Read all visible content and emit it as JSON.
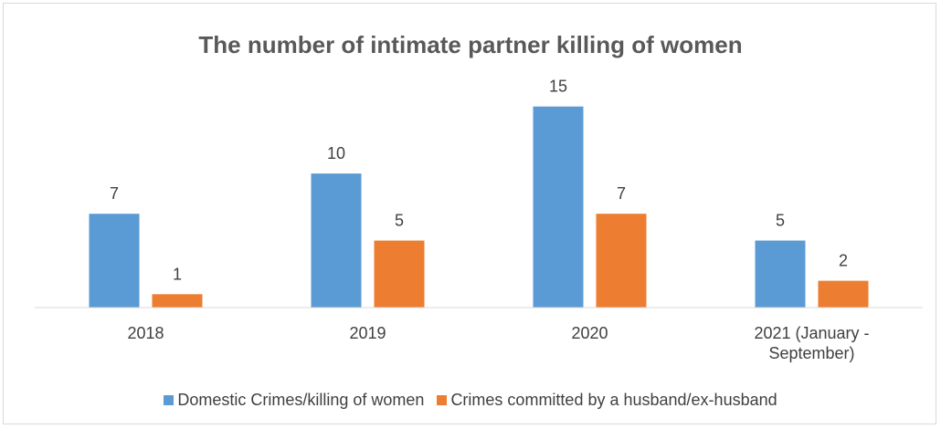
{
  "chart_data": {
    "type": "bar",
    "title": "The number of intimate partner killing of women",
    "categories": [
      "2018",
      "2019",
      "2020",
      "2021 (January - September)"
    ],
    "series": [
      {
        "name": "Domestic Crimes/killing of women",
        "color": "#5b9bd5",
        "values": [
          7,
          10,
          15,
          5
        ]
      },
      {
        "name": "Crimes committed by a husband/ex-husband",
        "color": "#ed7d31",
        "values": [
          1,
          5,
          7,
          2
        ]
      }
    ],
    "ylim": [
      0,
      16
    ],
    "legend": "bottom"
  }
}
